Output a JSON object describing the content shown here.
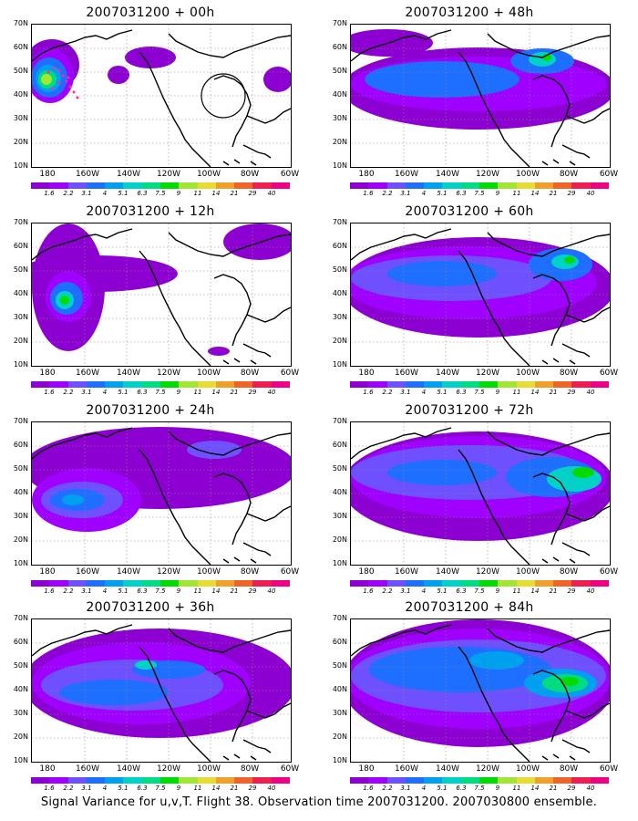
{
  "panels": [
    {
      "title": "2007031200 + 00h",
      "blobs": [
        {
          "cx": 22,
          "cy": 44,
          "rx": 30,
          "ry": 28,
          "level": 0
        },
        {
          "cx": 20,
          "cy": 56,
          "rx": 26,
          "ry": 30,
          "level": 1
        },
        {
          "cx": 19,
          "cy": 58,
          "rx": 20,
          "ry": 22,
          "level": 3
        },
        {
          "cx": 18,
          "cy": 59,
          "rx": 14,
          "ry": 15,
          "level": 4
        },
        {
          "cx": 17,
          "cy": 60,
          "rx": 10,
          "ry": 10,
          "level": 6
        },
        {
          "cx": 16,
          "cy": 60,
          "rx": 6,
          "ry": 6,
          "level": 8
        },
        {
          "cx": 95,
          "cy": 55,
          "rx": 12,
          "ry": 10,
          "level": 0
        },
        {
          "cx": 130,
          "cy": 36,
          "rx": 28,
          "ry": 12,
          "level": 0
        },
        {
          "cx": 270,
          "cy": 60,
          "rx": 16,
          "ry": 14,
          "level": 0
        }
      ],
      "dots": true
    },
    {
      "title": "2007031200 + 48h",
      "blobs": [
        {
          "cx": 140,
          "cy": 70,
          "rx": 150,
          "ry": 45,
          "level": 0
        },
        {
          "cx": 140,
          "cy": 65,
          "rx": 140,
          "ry": 30,
          "level": 1
        },
        {
          "cx": 100,
          "cy": 60,
          "rx": 85,
          "ry": 20,
          "level": 3
        },
        {
          "cx": 210,
          "cy": 40,
          "rx": 35,
          "ry": 14,
          "level": 3
        },
        {
          "cx": 210,
          "cy": 38,
          "rx": 15,
          "ry": 8,
          "level": 5
        },
        {
          "cx": 215,
          "cy": 36,
          "rx": 5,
          "ry": 4,
          "level": 7
        },
        {
          "cx": 40,
          "cy": 20,
          "rx": 50,
          "ry": 15,
          "level": 0
        }
      ],
      "dots": false
    },
    {
      "title": "2007031200 + 12h",
      "blobs": [
        {
          "cx": 40,
          "cy": 70,
          "rx": 40,
          "ry": 70,
          "level": 0
        },
        {
          "cx": 70,
          "cy": 55,
          "rx": 90,
          "ry": 20,
          "level": 0
        },
        {
          "cx": 250,
          "cy": 20,
          "rx": 40,
          "ry": 20,
          "level": 0
        },
        {
          "cx": 40,
          "cy": 80,
          "rx": 25,
          "ry": 28,
          "level": 1
        },
        {
          "cx": 38,
          "cy": 82,
          "rx": 18,
          "ry": 18,
          "level": 3
        },
        {
          "cx": 36,
          "cy": 84,
          "rx": 10,
          "ry": 10,
          "level": 5
        },
        {
          "cx": 36,
          "cy": 84,
          "rx": 5,
          "ry": 5,
          "level": 7
        },
        {
          "cx": 205,
          "cy": 140,
          "rx": 12,
          "ry": 5,
          "level": 0
        }
      ],
      "dots": false
    },
    {
      "title": "2007031200 + 60h",
      "blobs": [
        {
          "cx": 140,
          "cy": 70,
          "rx": 150,
          "ry": 55,
          "level": 0
        },
        {
          "cx": 130,
          "cy": 65,
          "rx": 140,
          "ry": 40,
          "level": 1
        },
        {
          "cx": 110,
          "cy": 60,
          "rx": 110,
          "ry": 25,
          "level": 2
        },
        {
          "cx": 100,
          "cy": 55,
          "rx": 60,
          "ry": 14,
          "level": 3
        },
        {
          "cx": 230,
          "cy": 45,
          "rx": 35,
          "ry": 18,
          "level": 3
        },
        {
          "cx": 235,
          "cy": 42,
          "rx": 15,
          "ry": 8,
          "level": 5
        },
        {
          "cx": 240,
          "cy": 40,
          "rx": 6,
          "ry": 4,
          "level": 7
        }
      ],
      "dots": false
    },
    {
      "title": "2007031200 + 24h",
      "blobs": [
        {
          "cx": 140,
          "cy": 50,
          "rx": 150,
          "ry": 45,
          "level": 0
        },
        {
          "cx": 60,
          "cy": 85,
          "rx": 60,
          "ry": 35,
          "level": 1
        },
        {
          "cx": 55,
          "cy": 85,
          "rx": 45,
          "ry": 20,
          "level": 2
        },
        {
          "cx": 50,
          "cy": 85,
          "rx": 30,
          "ry": 12,
          "level": 3
        },
        {
          "cx": 45,
          "cy": 85,
          "rx": 12,
          "ry": 6,
          "level": 4
        },
        {
          "cx": 200,
          "cy": 30,
          "rx": 30,
          "ry": 10,
          "level": 2
        }
      ],
      "dots": false
    },
    {
      "title": "2007031200 + 72h",
      "blobs": [
        {
          "cx": 140,
          "cy": 70,
          "rx": 150,
          "ry": 60,
          "level": 0
        },
        {
          "cx": 140,
          "cy": 60,
          "rx": 140,
          "ry": 45,
          "level": 1
        },
        {
          "cx": 130,
          "cy": 55,
          "rx": 130,
          "ry": 30,
          "level": 2
        },
        {
          "cx": 220,
          "cy": 60,
          "rx": 50,
          "ry": 22,
          "level": 3
        },
        {
          "cx": 245,
          "cy": 62,
          "rx": 30,
          "ry": 14,
          "level": 5
        },
        {
          "cx": 255,
          "cy": 55,
          "rx": 12,
          "ry": 6,
          "level": 7
        },
        {
          "cx": 100,
          "cy": 55,
          "rx": 60,
          "ry": 14,
          "level": 3
        }
      ],
      "dots": false
    },
    {
      "title": "2007031200 + 36h",
      "blobs": [
        {
          "cx": 140,
          "cy": 70,
          "rx": 150,
          "ry": 60,
          "level": 0
        },
        {
          "cx": 120,
          "cy": 70,
          "rx": 120,
          "ry": 45,
          "level": 1
        },
        {
          "cx": 110,
          "cy": 72,
          "rx": 100,
          "ry": 28,
          "level": 2
        },
        {
          "cx": 90,
          "cy": 80,
          "rx": 60,
          "ry": 14,
          "level": 3
        },
        {
          "cx": 150,
          "cy": 55,
          "rx": 40,
          "ry": 10,
          "level": 3
        },
        {
          "cx": 125,
          "cy": 50,
          "rx": 12,
          "ry": 5,
          "level": 5
        }
      ],
      "dots": false
    },
    {
      "title": "2007031200 + 84h",
      "blobs": [
        {
          "cx": 140,
          "cy": 70,
          "rx": 150,
          "ry": 70,
          "level": 0
        },
        {
          "cx": 140,
          "cy": 65,
          "rx": 145,
          "ry": 55,
          "level": 1
        },
        {
          "cx": 140,
          "cy": 62,
          "rx": 140,
          "ry": 40,
          "level": 2
        },
        {
          "cx": 120,
          "cy": 55,
          "rx": 100,
          "ry": 25,
          "level": 3
        },
        {
          "cx": 230,
          "cy": 70,
          "rx": 40,
          "ry": 16,
          "level": 4
        },
        {
          "cx": 235,
          "cy": 70,
          "rx": 25,
          "ry": 10,
          "level": 6
        },
        {
          "cx": 240,
          "cy": 68,
          "rx": 10,
          "ry": 5,
          "level": 7
        },
        {
          "cx": 160,
          "cy": 45,
          "rx": 30,
          "ry": 10,
          "level": 4
        }
      ],
      "dots": false
    }
  ],
  "y_ticks": [
    "70N",
    "60N",
    "50N",
    "40N",
    "30N",
    "20N",
    "10N"
  ],
  "x_ticks": [
    "180",
    "160W",
    "140W",
    "120W",
    "100W",
    "80W",
    "60W"
  ],
  "colorbar": {
    "labels": [
      "1.6",
      "2.2",
      "3.1",
      "4",
      "5.1",
      "6.3",
      "7.5",
      "9",
      "11",
      "14",
      "21",
      "29",
      "40"
    ],
    "colors": [
      "#8c00d2",
      "#a000ff",
      "#6e50ff",
      "#1e6eff",
      "#00a0f0",
      "#00d2c8",
      "#00dc82",
      "#00dc00",
      "#a0e632",
      "#e6dc32",
      "#f0a02a",
      "#f0642a",
      "#f01e50",
      "#f00082"
    ]
  },
  "footer": "Signal Variance for u,v,T. Flight 38. Observation time 2007031200. 2007030800 ensemble."
}
